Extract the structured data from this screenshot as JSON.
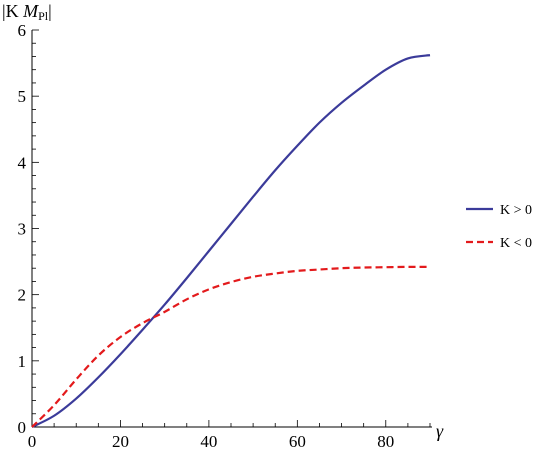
{
  "chart_data": {
    "type": "line",
    "title": "",
    "xlabel": "γ",
    "ylabel": "|K M_Pl|",
    "ylabel_main": "|K ",
    "ylabel_m": "M",
    "ylabel_sub": "Pl",
    "ylabel_close": "|",
    "xlim": [
      0,
      90
    ],
    "ylim": [
      0,
      6
    ],
    "xticks": [
      0,
      20,
      40,
      60,
      80
    ],
    "yticks": [
      0,
      1,
      2,
      3,
      4,
      5,
      6
    ],
    "grid": false,
    "legend_position": "right",
    "x": [
      0,
      5,
      10,
      15,
      20,
      25,
      30,
      35,
      40,
      45,
      50,
      55,
      60,
      65,
      70,
      75,
      80,
      85,
      90
    ],
    "series": [
      {
        "name": "K > 0",
        "color": "#3b3b9a",
        "style": "solid",
        "values": [
          0,
          0.17,
          0.43,
          0.75,
          1.1,
          1.47,
          1.85,
          2.25,
          2.66,
          3.07,
          3.48,
          3.88,
          4.25,
          4.6,
          4.9,
          5.16,
          5.4,
          5.57,
          5.62
        ]
      },
      {
        "name": "K < 0",
        "color": "#e31a1c",
        "style": "dashed",
        "values": [
          0,
          0.33,
          0.72,
          1.08,
          1.36,
          1.57,
          1.74,
          1.93,
          2.08,
          2.19,
          2.27,
          2.32,
          2.36,
          2.38,
          2.4,
          2.41,
          2.415,
          2.42,
          2.42
        ]
      }
    ]
  }
}
